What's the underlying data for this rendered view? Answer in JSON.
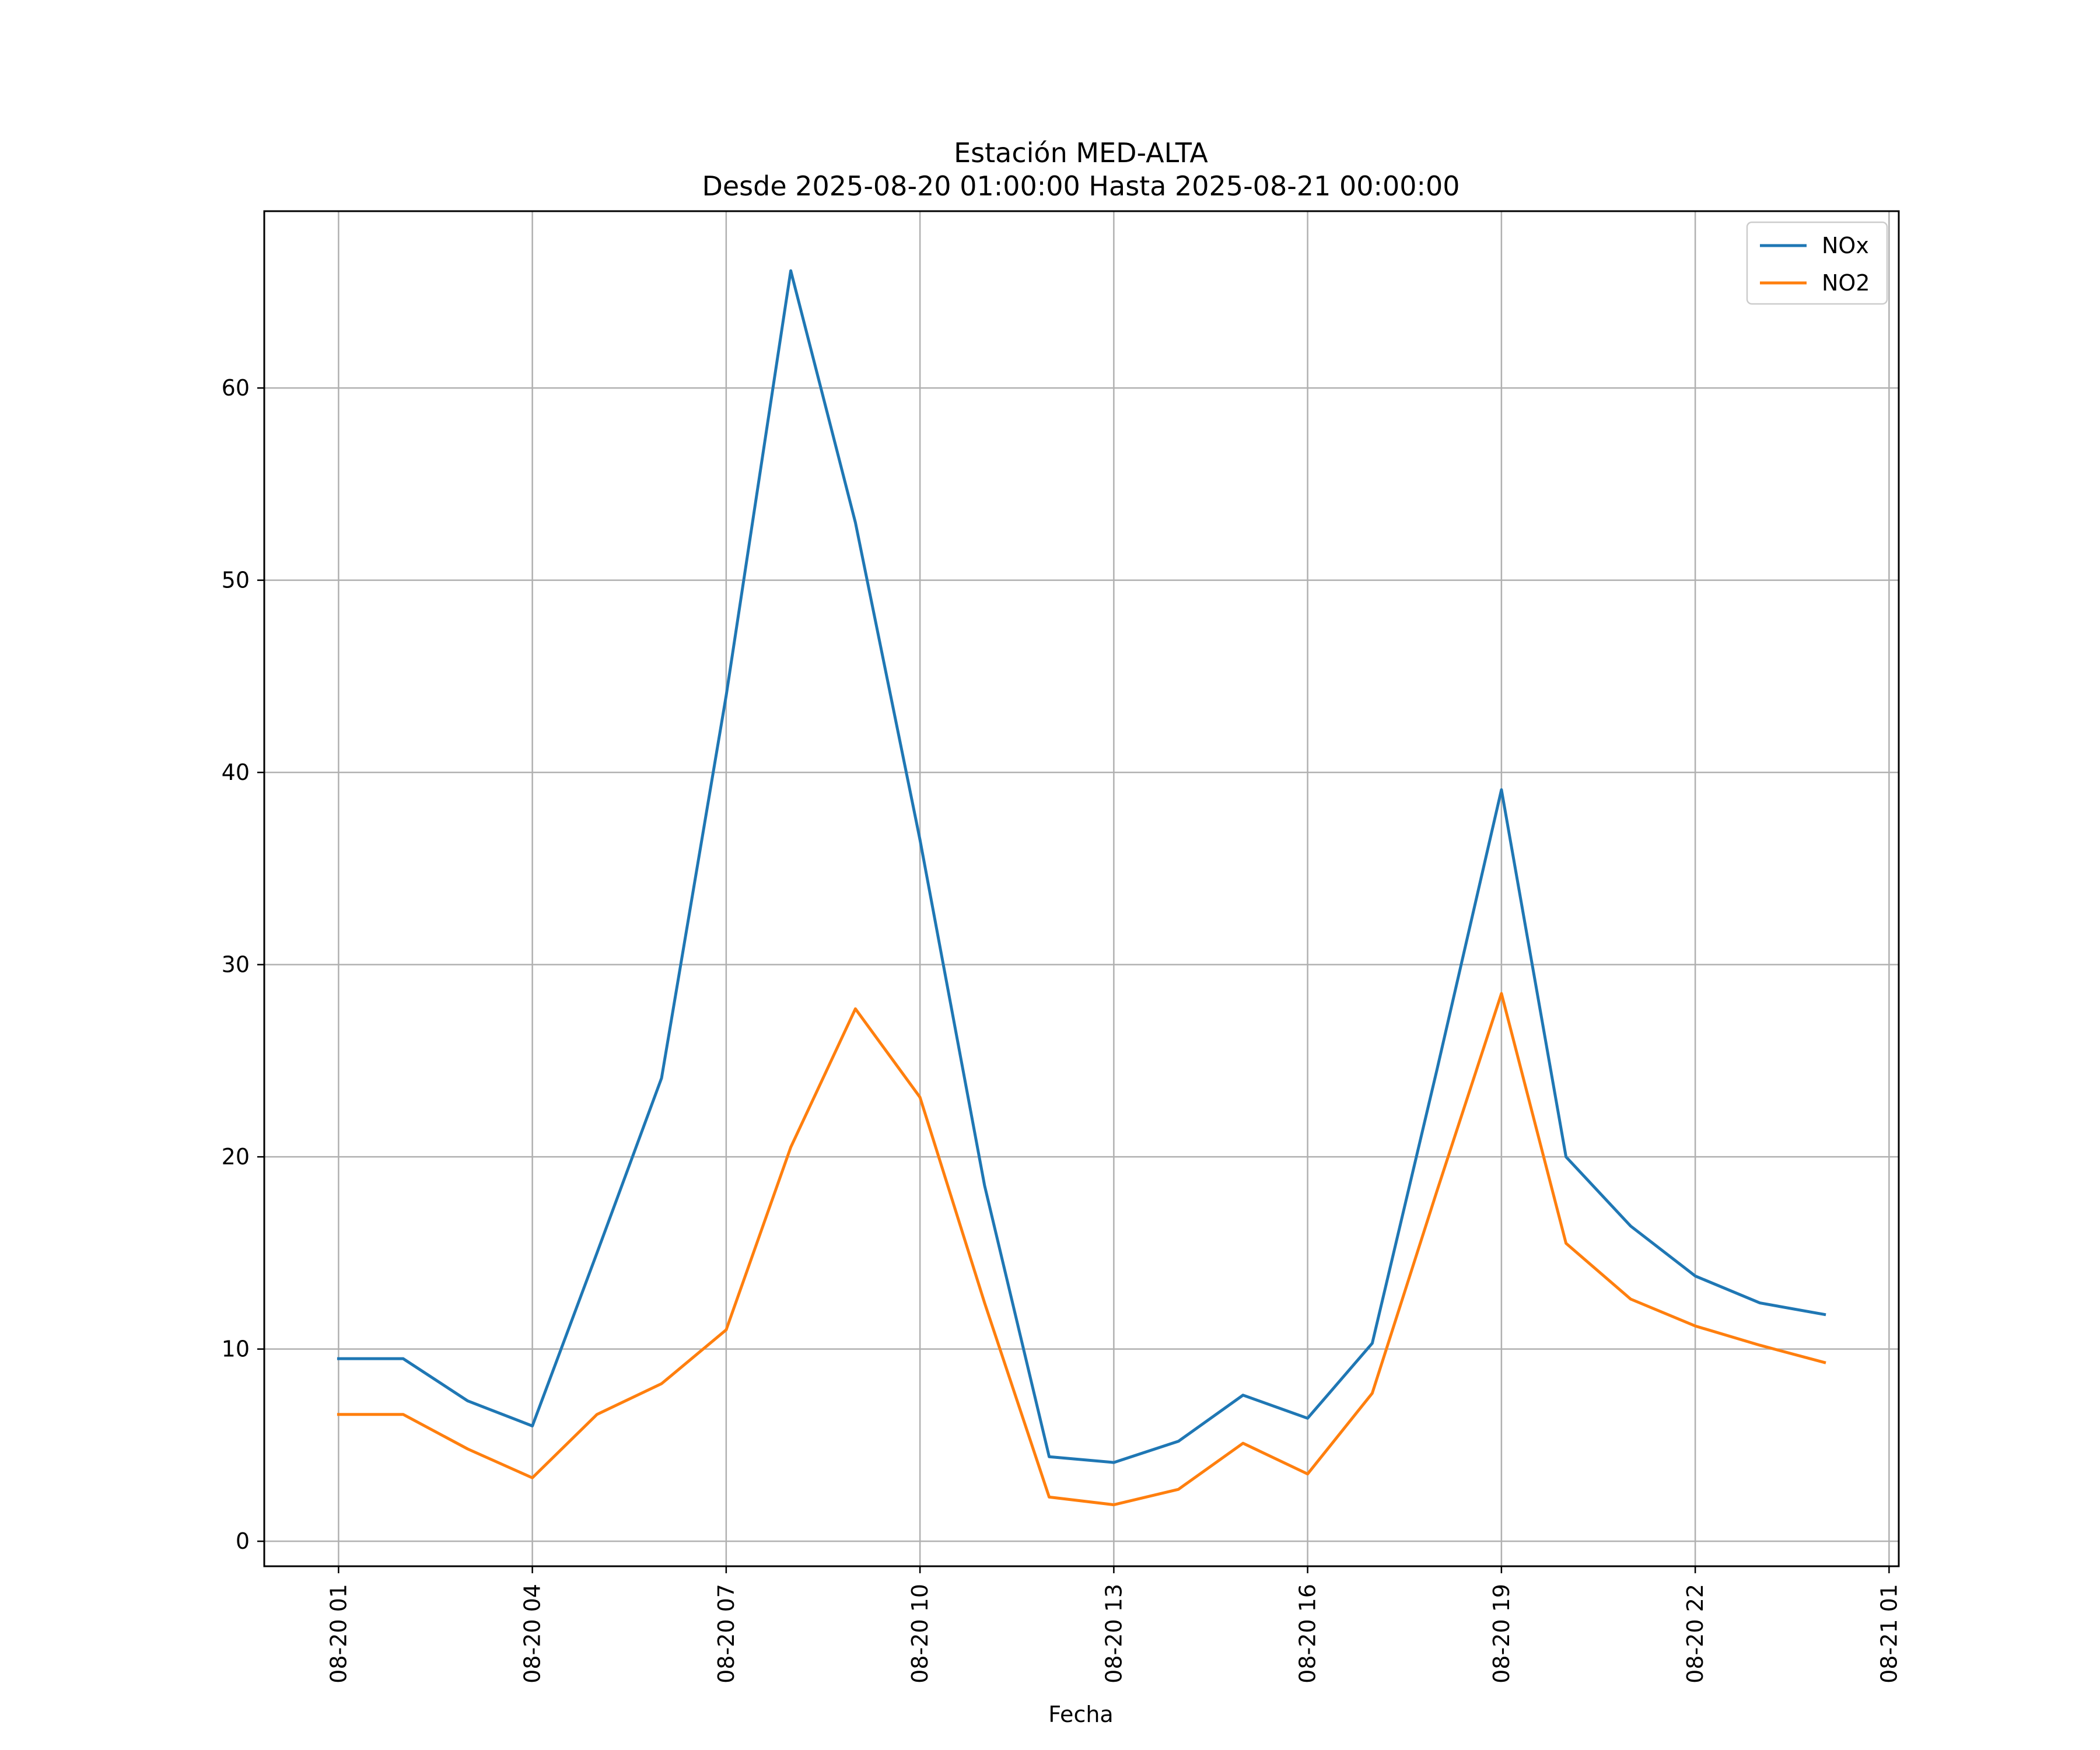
{
  "chart_data": {
    "type": "line",
    "title": "Estación MED-ALTA",
    "subtitle": "Desde 2025-08-20 01:00:00 Hasta 2025-08-21 00:00:00",
    "xlabel": "Fecha",
    "ylabel": "",
    "x": [
      "08-20 01",
      "08-20 02",
      "08-20 03",
      "08-20 04",
      "08-20 05",
      "08-20 06",
      "08-20 07",
      "08-20 08",
      "08-20 09",
      "08-20 10",
      "08-20 11",
      "08-20 12",
      "08-20 13",
      "08-20 14",
      "08-20 15",
      "08-20 16",
      "08-20 17",
      "08-20 18",
      "08-20 19",
      "08-20 20",
      "08-20 21",
      "08-20 22",
      "08-20 23",
      "08-21 00"
    ],
    "x_hours": [
      1,
      2,
      3,
      4,
      5,
      6,
      7,
      8,
      9,
      10,
      11,
      12,
      13,
      14,
      15,
      16,
      17,
      18,
      19,
      20,
      21,
      22,
      23,
      24
    ],
    "xlim_hours": [
      -0.15,
      25.15
    ],
    "ylim": [
      -1.3,
      69.2
    ],
    "x_ticks": [
      {
        "label": "08-20 01",
        "hour": 1
      },
      {
        "label": "08-20 04",
        "hour": 4
      },
      {
        "label": "08-20 07",
        "hour": 7
      },
      {
        "label": "08-20 10",
        "hour": 10
      },
      {
        "label": "08-20 13",
        "hour": 13
      },
      {
        "label": "08-20 16",
        "hour": 16
      },
      {
        "label": "08-20 19",
        "hour": 19
      },
      {
        "label": "08-20 22",
        "hour": 22
      },
      {
        "label": "08-21 01",
        "hour": 25
      }
    ],
    "y_ticks": [
      0,
      10,
      20,
      30,
      40,
      50,
      60
    ],
    "grid": true,
    "legend_position": "top-right",
    "series": [
      {
        "name": "NOx",
        "color": "#1f77b4",
        "values": [
          9.5,
          9.5,
          7.3,
          6.0,
          15.0,
          24.1,
          44.0,
          66.1,
          53.0,
          36.5,
          18.5,
          4.4,
          4.1,
          5.2,
          7.6,
          6.4,
          10.3,
          24.5,
          39.1,
          20.0,
          16.4,
          13.8,
          12.4,
          11.8
        ]
      },
      {
        "name": "NO2",
        "color": "#ff7f0e",
        "values": [
          6.6,
          6.6,
          4.8,
          3.3,
          6.6,
          8.2,
          11.0,
          20.5,
          27.7,
          23.1,
          12.4,
          2.3,
          1.9,
          2.7,
          5.1,
          3.5,
          7.7,
          18.2,
          28.5,
          15.5,
          12.6,
          11.2,
          10.2,
          9.3
        ]
      }
    ]
  }
}
